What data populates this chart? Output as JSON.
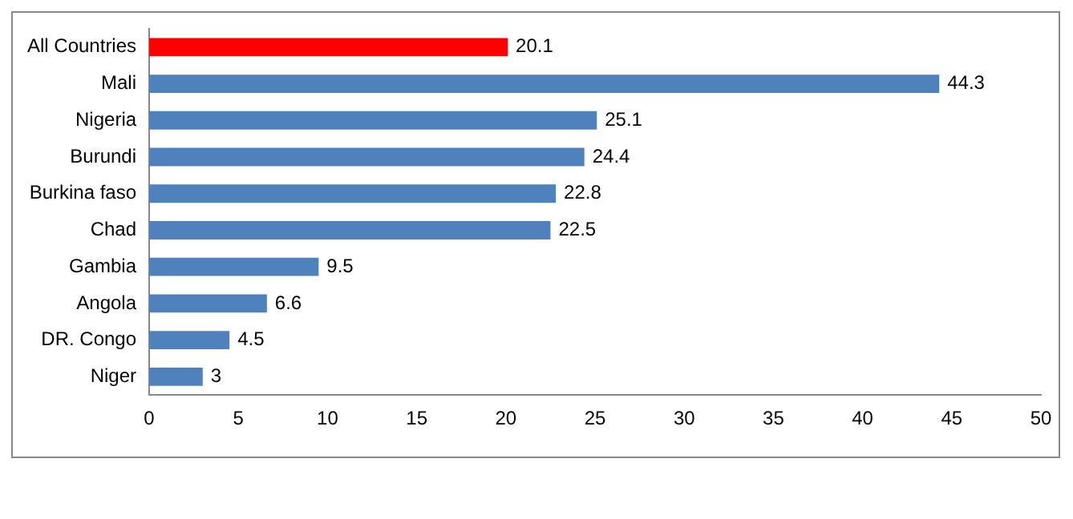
{
  "chart_data": {
    "type": "bar",
    "orientation": "horizontal",
    "categories": [
      "All Countries",
      "Mali",
      "Nigeria",
      "Burundi",
      "Burkina faso",
      "Chad",
      "Gambia",
      "Angola",
      "DR. Congo",
      "Niger"
    ],
    "values": [
      20.1,
      44.3,
      25.1,
      24.4,
      22.8,
      22.5,
      9.5,
      6.6,
      4.5,
      3
    ],
    "colors": [
      "#ff0000",
      "#4f81bd",
      "#4f81bd",
      "#4f81bd",
      "#4f81bd",
      "#4f81bd",
      "#4f81bd",
      "#4f81bd",
      "#4f81bd",
      "#4f81bd"
    ],
    "xlim": [
      0,
      50
    ],
    "xticks": [
      0,
      5,
      10,
      15,
      20,
      25,
      30,
      35,
      40,
      45,
      50
    ],
    "data_labels": true,
    "grid": false,
    "legend": false
  }
}
